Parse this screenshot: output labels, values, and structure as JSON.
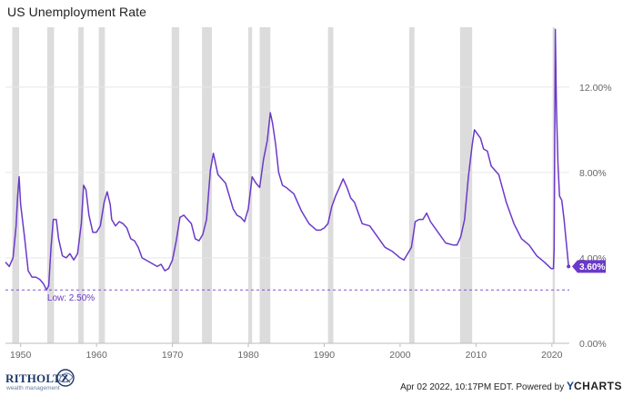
{
  "chart_data": {
    "type": "line",
    "title": "US Unemployment Rate",
    "xlabel": "",
    "ylabel": "",
    "xlim": [
      1948.0,
      2022.3
    ],
    "ylim": [
      0,
      14.8
    ],
    "x_ticks": [
      1950,
      1960,
      1970,
      1980,
      1990,
      2000,
      2010,
      2020
    ],
    "x_tick_labels": [
      "1950",
      "1960",
      "1970",
      "1980",
      "1990",
      "2000",
      "2010",
      "2020"
    ],
    "y_ticks": [
      0,
      4,
      8,
      12
    ],
    "y_tick_labels": [
      "0.00%",
      "4.00%",
      "8.00%",
      "12.00%"
    ],
    "grid": "horizontal",
    "line_color": "#6b39c9",
    "recession_color": "#dcdcdc",
    "recessions": [
      [
        1948.9,
        1949.8
      ],
      [
        1953.5,
        1954.4
      ],
      [
        1957.6,
        1958.3
      ],
      [
        1960.3,
        1961.1
      ],
      [
        1969.9,
        1970.9
      ],
      [
        1973.9,
        1975.2
      ],
      [
        1980.0,
        1980.5
      ],
      [
        1981.5,
        1982.9
      ],
      [
        1990.5,
        1991.2
      ],
      [
        2001.2,
        2001.9
      ],
      [
        2007.9,
        2009.5
      ],
      [
        2020.1,
        2020.4
      ]
    ],
    "series": [
      {
        "x": [
          1948.0,
          1948.5,
          1949.0,
          1949.4,
          1949.6,
          1949.8,
          1950.0,
          1950.5,
          1951.0,
          1951.5,
          1952.0,
          1952.5,
          1953.0,
          1953.4,
          1953.7,
          1954.0,
          1954.3,
          1954.7,
          1955.0,
          1955.5,
          1956.0,
          1956.5,
          1957.0,
          1957.5,
          1958.0,
          1958.3,
          1958.6,
          1959.0,
          1959.5,
          1960.0,
          1960.5,
          1961.0,
          1961.4,
          1961.8,
          1962.0,
          1962.5,
          1963.0,
          1963.5,
          1964.0,
          1964.5,
          1965.0,
          1965.5,
          1966.0,
          1967.0,
          1968.0,
          1968.5,
          1969.0,
          1969.5,
          1970.0,
          1970.5,
          1971.0,
          1971.5,
          1972.0,
          1972.5,
          1973.0,
          1973.5,
          1974.0,
          1974.5,
          1975.0,
          1975.4,
          1975.7,
          1976.0,
          1976.5,
          1977.0,
          1977.5,
          1978.0,
          1978.5,
          1979.0,
          1979.5,
          1980.0,
          1980.5,
          1981.0,
          1981.5,
          1982.0,
          1982.5,
          1982.9,
          1983.2,
          1983.6,
          1984.0,
          1984.5,
          1985.0,
          1986.0,
          1987.0,
          1988.0,
          1989.0,
          1989.5,
          1990.0,
          1990.5,
          1991.0,
          1991.5,
          1992.0,
          1992.5,
          1993.0,
          1993.5,
          1994.0,
          1995.0,
          1996.0,
          1997.0,
          1998.0,
          1999.0,
          2000.0,
          2000.5,
          2001.0,
          2001.5,
          2002.0,
          2002.5,
          2003.0,
          2003.5,
          2004.0,
          2005.0,
          2006.0,
          2007.0,
          2007.5,
          2008.0,
          2008.5,
          2009.0,
          2009.5,
          2009.8,
          2010.2,
          2010.6,
          2011.0,
          2011.5,
          2012.0,
          2012.5,
          2013.0,
          2014.0,
          2015.0,
          2016.0,
          2017.0,
          2018.0,
          2019.0,
          2019.9,
          2020.2,
          2020.3,
          2020.45,
          2020.6,
          2020.8,
          2021.0,
          2021.3,
          2021.6,
          2021.9,
          2022.2
        ],
        "y": [
          3.8,
          3.6,
          4.0,
          5.5,
          6.9,
          7.8,
          6.5,
          5.0,
          3.4,
          3.1,
          3.1,
          3.0,
          2.8,
          2.5,
          2.7,
          4.5,
          5.8,
          5.8,
          4.9,
          4.1,
          4.0,
          4.2,
          3.9,
          4.2,
          5.6,
          7.4,
          7.2,
          6.0,
          5.2,
          5.2,
          5.5,
          6.6,
          7.1,
          6.5,
          5.8,
          5.5,
          5.7,
          5.6,
          5.4,
          4.9,
          4.8,
          4.5,
          4.0,
          3.8,
          3.6,
          3.7,
          3.4,
          3.5,
          3.9,
          4.8,
          5.9,
          6.0,
          5.8,
          5.6,
          4.9,
          4.8,
          5.1,
          5.8,
          8.1,
          8.9,
          8.4,
          7.9,
          7.7,
          7.5,
          6.9,
          6.3,
          6.0,
          5.9,
          5.7,
          6.3,
          7.8,
          7.5,
          7.3,
          8.6,
          9.5,
          10.8,
          10.3,
          9.3,
          8.0,
          7.4,
          7.3,
          7.0,
          6.2,
          5.6,
          5.3,
          5.3,
          5.4,
          5.6,
          6.4,
          6.9,
          7.3,
          7.7,
          7.3,
          6.8,
          6.6,
          5.6,
          5.5,
          5.0,
          4.5,
          4.3,
          4.0,
          3.9,
          4.2,
          4.5,
          5.7,
          5.8,
          5.8,
          6.1,
          5.7,
          5.2,
          4.7,
          4.6,
          4.6,
          5.0,
          5.8,
          7.8,
          9.3,
          10.0,
          9.8,
          9.6,
          9.1,
          9.0,
          8.3,
          8.1,
          7.9,
          6.6,
          5.6,
          4.9,
          4.6,
          4.1,
          3.8,
          3.5,
          3.5,
          4.4,
          14.7,
          11.1,
          8.4,
          6.9,
          6.7,
          5.8,
          4.7,
          3.6
        ]
      }
    ],
    "low_line": {
      "value": 2.5,
      "label": "Low: 2.50%",
      "color": "#6b39c9"
    },
    "end_label": {
      "value": 3.6,
      "label": "3.60%",
      "color": "#6b39c9"
    }
  },
  "brand": {
    "name": "RITHOLTZ",
    "subtitle": "wealth management",
    "mark": "RWM"
  },
  "footer": {
    "timestamp": "Apr 02 2022, 10:17PM EDT.",
    "powered_by": "Powered by",
    "y_glyph": "Y",
    "ycharts_word": "CHARTS"
  }
}
